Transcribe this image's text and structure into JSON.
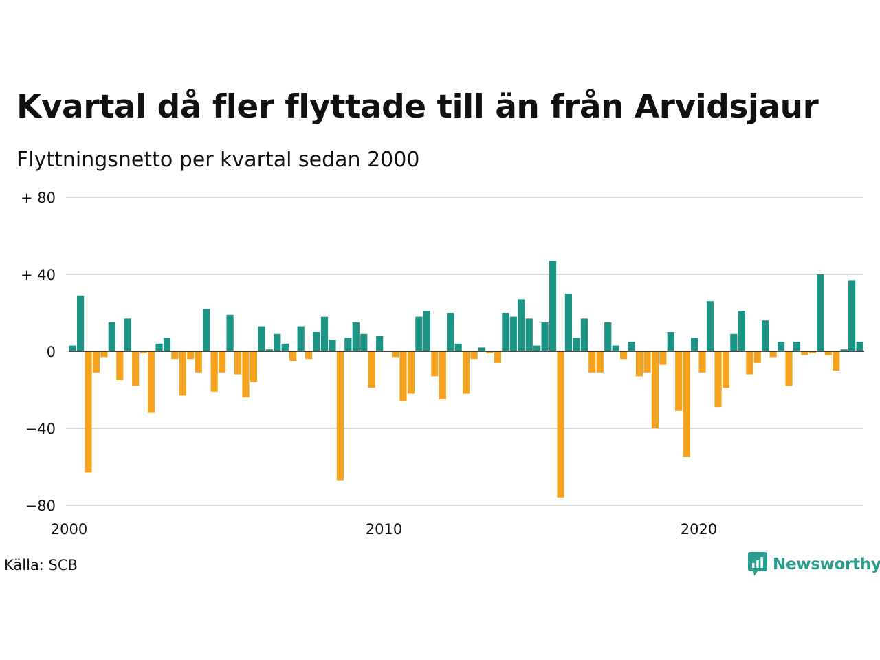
{
  "title": "Kvartal då fler flyttade till än från Arvidsjaur",
  "subtitle": "Flyttningsnetto per kvartal sedan 2000",
  "source": "Källa: SCB",
  "brand": "Newsworthy",
  "colors": {
    "positive": "#1b9486",
    "negative": "#f5a31f",
    "grid": "#dddddd",
    "brand": "#2a9d8f"
  },
  "chart_data": {
    "type": "bar",
    "x_start": 2000,
    "x_step": "quarter",
    "xlim": [
      2000,
      2025.5
    ],
    "ylim": [
      -80,
      80
    ],
    "y_ticks": [
      80,
      40,
      0,
      -40,
      -80
    ],
    "y_tick_labels": [
      "+ 80",
      "+ 40",
      "0",
      "−40",
      "−80"
    ],
    "x_ticks": [
      2000,
      2010,
      2020
    ],
    "x_tick_labels": [
      "2000",
      "2010",
      "2020"
    ],
    "grid": true,
    "legend": "none",
    "values": [
      3,
      29,
      -63,
      -11,
      -3,
      15,
      -15,
      17,
      -18,
      -1,
      -32,
      4,
      7,
      -4,
      -23,
      -4,
      -11,
      22,
      -21,
      -11,
      19,
      -12,
      -24,
      -16,
      13,
      1,
      9,
      4,
      -5,
      13,
      -4,
      10,
      18,
      6,
      -67,
      7,
      15,
      9,
      -19,
      8,
      0,
      -3,
      -26,
      -22,
      18,
      21,
      -13,
      -25,
      20,
      4,
      -22,
      -4,
      2,
      -1,
      -6,
      20,
      18,
      27,
      17,
      3,
      15,
      47,
      -76,
      30,
      7,
      17,
      -11,
      -11,
      15,
      3,
      -4,
      5,
      -13,
      -11,
      -40,
      -7,
      10,
      -31,
      -55,
      7,
      -11,
      26,
      -29,
      -19,
      9,
      21,
      -12,
      -6,
      16,
      -3,
      5,
      -18,
      5,
      -2,
      -1,
      40,
      -2,
      -10,
      1,
      37,
      5
    ]
  }
}
